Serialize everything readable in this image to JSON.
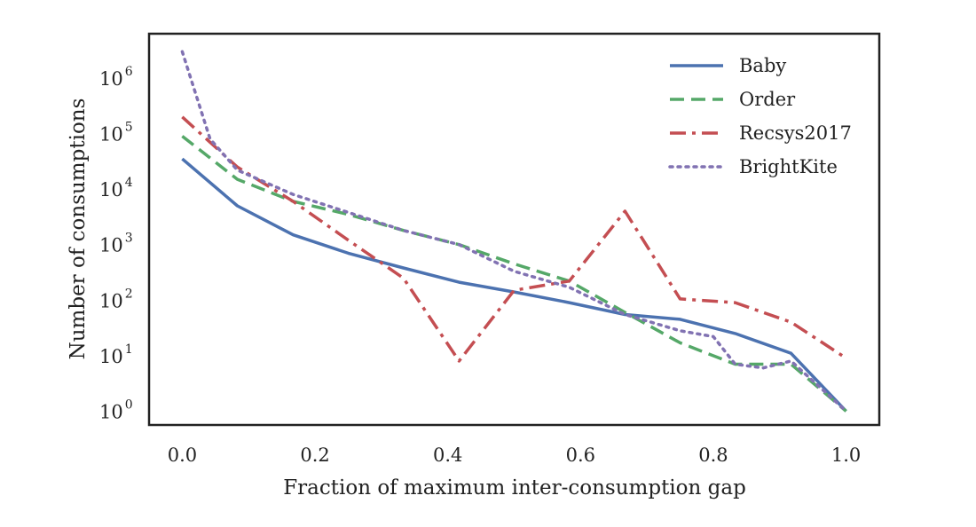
{
  "chart_data": {
    "type": "line",
    "xlabel": "Fraction of maximum inter-consumption gap",
    "ylabel": "Number of consumptions",
    "xlim": [
      -0.05,
      1.05
    ],
    "ylim_log10": [
      -0.25,
      6.8
    ],
    "y_scale": "log",
    "x_ticks": [
      {
        "value": 0.0,
        "label": "0.0"
      },
      {
        "value": 0.2,
        "label": "0.2"
      },
      {
        "value": 0.4,
        "label": "0.4"
      },
      {
        "value": 0.6,
        "label": "0.6"
      },
      {
        "value": 0.8,
        "label": "0.8"
      },
      {
        "value": 1.0,
        "label": "1.0"
      }
    ],
    "y_ticks": [
      {
        "value": 1,
        "base": "10",
        "exponent": "0"
      },
      {
        "value": 10,
        "base": "10",
        "exponent": "1"
      },
      {
        "value": 100,
        "base": "10",
        "exponent": "2"
      },
      {
        "value": 1000,
        "base": "10",
        "exponent": "3"
      },
      {
        "value": 10000,
        "base": "10",
        "exponent": "4"
      },
      {
        "value": 100000,
        "base": "10",
        "exponent": "5"
      },
      {
        "value": 1000000,
        "base": "10",
        "exponent": "6"
      }
    ],
    "grid": false,
    "legend_position": "top-right",
    "series": [
      {
        "name": "Baby",
        "color": "#4c72b0",
        "style": "solid",
        "x": [
          0.0,
          0.083,
          0.167,
          0.25,
          0.333,
          0.417,
          0.5,
          0.583,
          0.667,
          0.75,
          0.833,
          0.917,
          1.0
        ],
        "y": [
          35000,
          5000,
          1500,
          700,
          380,
          210,
          140,
          90,
          55,
          45,
          25,
          11,
          1
        ]
      },
      {
        "name": "Order",
        "color": "#55a868",
        "style": "dashed",
        "x": [
          0.0,
          0.083,
          0.167,
          0.25,
          0.333,
          0.417,
          0.5,
          0.583,
          0.667,
          0.75,
          0.833,
          0.917,
          1.0
        ],
        "y": [
          90000,
          15000,
          6000,
          3500,
          1800,
          1000,
          450,
          220,
          60,
          17,
          7,
          7,
          1
        ]
      },
      {
        "name": "Recsys2017",
        "color": "#c44e52",
        "style": "dashdot",
        "x": [
          0.0,
          0.083,
          0.167,
          0.25,
          0.333,
          0.417,
          0.5,
          0.583,
          0.667,
          0.75,
          0.833,
          0.917,
          1.0
        ],
        "y": [
          200000,
          25000,
          6000,
          1200,
          250,
          8,
          150,
          220,
          4000,
          105,
          90,
          40,
          9
        ]
      },
      {
        "name": "BrightKite",
        "color": "#8172b2",
        "style": "dotted",
        "x": [
          0.0,
          0.042,
          0.083,
          0.167,
          0.25,
          0.333,
          0.417,
          0.5,
          0.583,
          0.667,
          0.75,
          0.8,
          0.833,
          0.875,
          0.917,
          1.0
        ],
        "y": [
          3000000,
          80000,
          22000,
          8000,
          3800,
          1800,
          1000,
          330,
          170,
          55,
          28,
          22,
          7,
          6,
          8,
          1
        ]
      }
    ]
  }
}
